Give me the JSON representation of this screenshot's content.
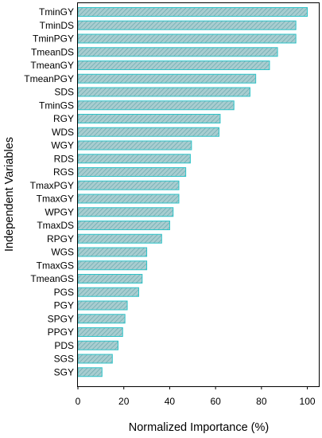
{
  "chart_data": {
    "type": "bar",
    "orientation": "horizontal",
    "categories": [
      "TminGY",
      "TminDS",
      "TminPGY",
      "TmeanDS",
      "TmeanGY",
      "TmeanPGY",
      "SDS",
      "TminGS",
      "RGY",
      "WDS",
      "WGY",
      "RDS",
      "RGS",
      "TmaxPGY",
      "TmaxGY",
      "WPGY",
      "TmaxDS",
      "RPGY",
      "WGS",
      "TmaxGS",
      "TmeanGS",
      "PGS",
      "PGY",
      "SPGY",
      "PPGY",
      "PDS",
      "SGS",
      "SGY"
    ],
    "values": [
      100,
      95,
      95,
      87,
      83.5,
      77.5,
      75,
      68,
      62,
      61.5,
      49.5,
      49,
      47,
      44,
      44,
      41.5,
      40,
      36.5,
      30,
      30,
      28,
      26.5,
      21.5,
      20.5,
      19.5,
      17.5,
      15,
      10.5
    ],
    "xlabel": "Normalized Importance (%)",
    "ylabel": "Independent Variables",
    "xlim": [
      0,
      105
    ],
    "xticks": [
      0,
      20,
      40,
      60,
      80,
      100
    ],
    "grid": false,
    "bar_fill": "#a8cdd0",
    "bar_stroke": "#2ec4c9",
    "hatch_color": "#6aa8ad"
  }
}
